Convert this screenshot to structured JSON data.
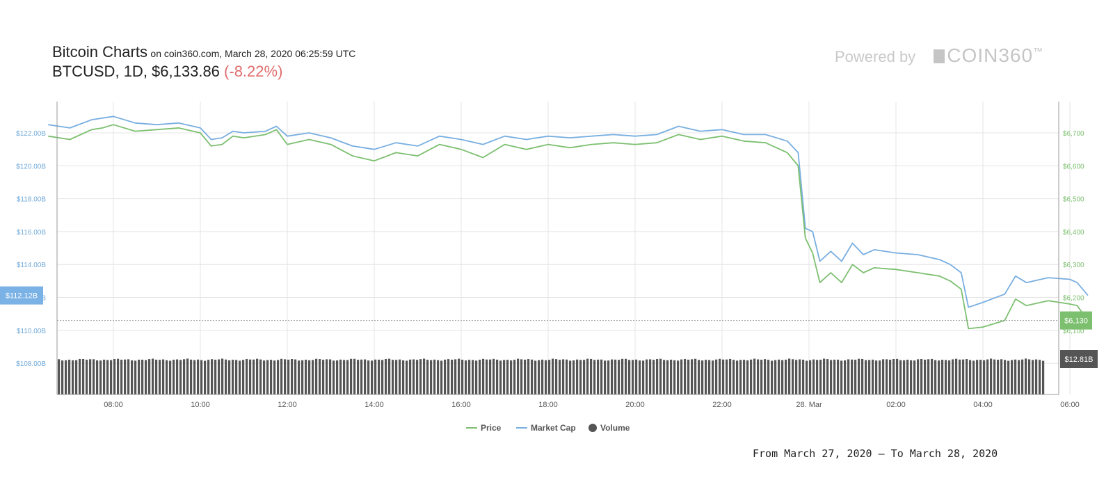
{
  "header": {
    "title": "Bitcoin Charts",
    "subtitle": "on coin360.com, March 28, 2020 06:25:59 UTC",
    "pair": "BTCUSD",
    "interval": "1D",
    "price": "$6,133.86",
    "change": "(-8.22%)"
  },
  "branding": {
    "powered_by": "Powered by",
    "logo": "COIN360",
    "logo_tm": "™"
  },
  "footer": {
    "range": "From March 27, 2020 – To March 28, 2020"
  },
  "colors": {
    "price": "#7cbf6f",
    "market_cap": "#78aee0",
    "volume": "#555555",
    "grid": "#e4e4e4",
    "change": "#e06c6c"
  },
  "chart_data": {
    "type": "line",
    "x_ticks": [
      "08:00",
      "10:00",
      "12:00",
      "14:00",
      "16:00",
      "18:00",
      "20:00",
      "22:00",
      "28. Mar",
      "02:00",
      "04:00",
      "06:00"
    ],
    "left_axis": {
      "label_values": [
        108,
        110,
        112,
        114,
        116,
        118,
        120,
        122
      ],
      "labels": [
        "$108.00B",
        "$110.00B",
        "$112.00B",
        "$114.00B",
        "$116.00B",
        "$118.00B",
        "$120.00B",
        "$122.00B"
      ],
      "range": [
        106.2,
        124.0
      ]
    },
    "right_axis": {
      "label_values": [
        6100,
        6200,
        6300,
        6400,
        6500,
        6600,
        6700
      ],
      "labels": [
        "$6,100",
        "$6,200",
        "$6,300",
        "$6,400",
        "$6,500",
        "$6,600",
        "$6,700"
      ],
      "range": [
        5890,
        6800
      ]
    },
    "current_labels": {
      "market_cap": "$112.12B",
      "price": "$6,130",
      "volume": "$12.81B"
    },
    "legend": {
      "placement": "bottom-center",
      "items": [
        "Price",
        "Market Cap",
        "Volume"
      ]
    },
    "grid": true,
    "time_range": [
      "2020-03-27 06:30",
      "2020-03-28 06:25"
    ],
    "series": [
      {
        "name": "Price",
        "axis": "right",
        "points": [
          [
            "2020-03-27 06:30",
            6690
          ],
          [
            "2020-03-27 07:00",
            6680
          ],
          [
            "2020-03-27 07:30",
            6710
          ],
          [
            "2020-03-27 07:45",
            6715
          ],
          [
            "2020-03-27 08:00",
            6725
          ],
          [
            "2020-03-27 08:30",
            6705
          ],
          [
            "2020-03-27 09:00",
            6710
          ],
          [
            "2020-03-27 09:30",
            6715
          ],
          [
            "2020-03-27 10:00",
            6700
          ],
          [
            "2020-03-27 10:15",
            6660
          ],
          [
            "2020-03-27 10:30",
            6665
          ],
          [
            "2020-03-27 10:45",
            6690
          ],
          [
            "2020-03-27 11:00",
            6685
          ],
          [
            "2020-03-27 11:30",
            6695
          ],
          [
            "2020-03-27 11:45",
            6710
          ],
          [
            "2020-03-27 12:00",
            6665
          ],
          [
            "2020-03-27 12:30",
            6680
          ],
          [
            "2020-03-27 13:00",
            6665
          ],
          [
            "2020-03-27 13:30",
            6630
          ],
          [
            "2020-03-27 14:00",
            6615
          ],
          [
            "2020-03-27 14:30",
            6640
          ],
          [
            "2020-03-27 15:00",
            6630
          ],
          [
            "2020-03-27 15:30",
            6665
          ],
          [
            "2020-03-27 16:00",
            6650
          ],
          [
            "2020-03-27 16:30",
            6625
          ],
          [
            "2020-03-27 17:00",
            6665
          ],
          [
            "2020-03-27 17:30",
            6650
          ],
          [
            "2020-03-27 18:00",
            6665
          ],
          [
            "2020-03-27 18:30",
            6655
          ],
          [
            "2020-03-27 19:00",
            6665
          ],
          [
            "2020-03-27 19:30",
            6670
          ],
          [
            "2020-03-27 20:00",
            6665
          ],
          [
            "2020-03-27 20:30",
            6670
          ],
          [
            "2020-03-27 21:00",
            6695
          ],
          [
            "2020-03-27 21:30",
            6680
          ],
          [
            "2020-03-27 22:00",
            6690
          ],
          [
            "2020-03-27 22:30",
            6675
          ],
          [
            "2020-03-27 23:00",
            6670
          ],
          [
            "2020-03-27 23:30",
            6640
          ],
          [
            "2020-03-27 23:45",
            6600
          ],
          [
            "2020-03-27 23:55",
            6380
          ],
          [
            "2020-03-28 00:05",
            6335
          ],
          [
            "2020-03-28 00:15",
            6245
          ],
          [
            "2020-03-28 00:30",
            6275
          ],
          [
            "2020-03-28 00:45",
            6245
          ],
          [
            "2020-03-28 01:00",
            6300
          ],
          [
            "2020-03-28 01:15",
            6275
          ],
          [
            "2020-03-28 01:30",
            6290
          ],
          [
            "2020-03-28 02:00",
            6285
          ],
          [
            "2020-03-28 02:30",
            6275
          ],
          [
            "2020-03-28 03:00",
            6265
          ],
          [
            "2020-03-28 03:15",
            6250
          ],
          [
            "2020-03-28 03:30",
            6225
          ],
          [
            "2020-03-28 03:40",
            6105
          ],
          [
            "2020-03-28 04:00",
            6110
          ],
          [
            "2020-03-28 04:30",
            6130
          ],
          [
            "2020-03-28 04:45",
            6195
          ],
          [
            "2020-03-28 05:00",
            6175
          ],
          [
            "2020-03-28 05:30",
            6190
          ],
          [
            "2020-03-28 06:00",
            6180
          ],
          [
            "2020-03-28 06:10",
            6175
          ],
          [
            "2020-03-28 06:25",
            6130
          ]
        ]
      },
      {
        "name": "Market Cap",
        "axis": "left",
        "points": [
          [
            "2020-03-27 06:30",
            122.5
          ],
          [
            "2020-03-27 07:00",
            122.3
          ],
          [
            "2020-03-27 07:30",
            122.8
          ],
          [
            "2020-03-27 07:45",
            122.9
          ],
          [
            "2020-03-27 08:00",
            123.0
          ],
          [
            "2020-03-27 08:30",
            122.6
          ],
          [
            "2020-03-27 09:00",
            122.5
          ],
          [
            "2020-03-27 09:30",
            122.6
          ],
          [
            "2020-03-27 10:00",
            122.3
          ],
          [
            "2020-03-27 10:15",
            121.6
          ],
          [
            "2020-03-27 10:30",
            121.7
          ],
          [
            "2020-03-27 10:45",
            122.1
          ],
          [
            "2020-03-27 11:00",
            122.0
          ],
          [
            "2020-03-27 11:30",
            122.1
          ],
          [
            "2020-03-27 11:45",
            122.4
          ],
          [
            "2020-03-27 12:00",
            121.8
          ],
          [
            "2020-03-27 12:30",
            122.0
          ],
          [
            "2020-03-27 13:00",
            121.7
          ],
          [
            "2020-03-27 13:30",
            121.2
          ],
          [
            "2020-03-27 14:00",
            121.0
          ],
          [
            "2020-03-27 14:30",
            121.4
          ],
          [
            "2020-03-27 15:00",
            121.2
          ],
          [
            "2020-03-27 15:30",
            121.8
          ],
          [
            "2020-03-27 16:00",
            121.6
          ],
          [
            "2020-03-27 16:30",
            121.3
          ],
          [
            "2020-03-27 17:00",
            121.8
          ],
          [
            "2020-03-27 17:30",
            121.6
          ],
          [
            "2020-03-27 18:00",
            121.8
          ],
          [
            "2020-03-27 18:30",
            121.7
          ],
          [
            "2020-03-27 19:00",
            121.8
          ],
          [
            "2020-03-27 19:30",
            121.9
          ],
          [
            "2020-03-27 20:00",
            121.8
          ],
          [
            "2020-03-27 20:30",
            121.9
          ],
          [
            "2020-03-27 21:00",
            122.4
          ],
          [
            "2020-03-27 21:30",
            122.1
          ],
          [
            "2020-03-27 22:00",
            122.2
          ],
          [
            "2020-03-27 22:30",
            121.9
          ],
          [
            "2020-03-27 23:00",
            121.9
          ],
          [
            "2020-03-27 23:30",
            121.5
          ],
          [
            "2020-03-27 23:45",
            120.8
          ],
          [
            "2020-03-27 23:55",
            116.2
          ],
          [
            "2020-03-28 00:05",
            116.0
          ],
          [
            "2020-03-28 00:15",
            114.2
          ],
          [
            "2020-03-28 00:30",
            114.8
          ],
          [
            "2020-03-28 00:45",
            114.2
          ],
          [
            "2020-03-28 01:00",
            115.3
          ],
          [
            "2020-03-28 01:15",
            114.6
          ],
          [
            "2020-03-28 01:30",
            114.9
          ],
          [
            "2020-03-28 02:00",
            114.7
          ],
          [
            "2020-03-28 02:30",
            114.6
          ],
          [
            "2020-03-28 03:00",
            114.3
          ],
          [
            "2020-03-28 03:15",
            114.0
          ],
          [
            "2020-03-28 03:30",
            113.5
          ],
          [
            "2020-03-28 03:40",
            111.4
          ],
          [
            "2020-03-28 04:00",
            111.7
          ],
          [
            "2020-03-28 04:30",
            112.2
          ],
          [
            "2020-03-28 04:45",
            113.3
          ],
          [
            "2020-03-28 05:00",
            112.9
          ],
          [
            "2020-03-28 05:30",
            113.2
          ],
          [
            "2020-03-28 06:00",
            113.1
          ],
          [
            "2020-03-28 06:10",
            112.9
          ],
          [
            "2020-03-28 06:25",
            112.12
          ]
        ]
      },
      {
        "name": "Volume",
        "axis": "none",
        "note": "uniform near-constant bars",
        "latest": 12.81
      }
    ]
  }
}
